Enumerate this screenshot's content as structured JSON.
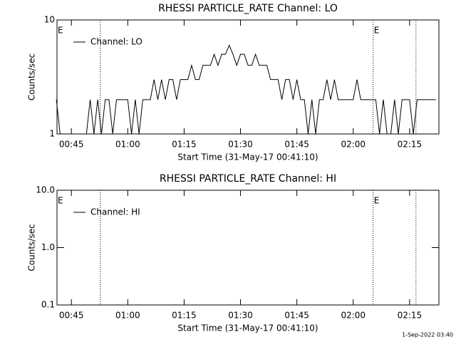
{
  "chart_data": [
    {
      "type": "line",
      "title": "RHESSI PARTICLE_RATE Channel: LO",
      "xlabel": "Start Time (31-May-17 00:41:10)",
      "ylabel": "Counts/sec",
      "log_y": true,
      "xlim": [
        41.17,
        142.8
      ],
      "ylim": [
        1,
        10
      ],
      "yticks": [
        1,
        10
      ],
      "xticks": [
        {
          "value": 45,
          "label": "00:45"
        },
        {
          "value": 60,
          "label": "01:00"
        },
        {
          "value": 75,
          "label": "01:15"
        },
        {
          "value": 90,
          "label": "01:30"
        },
        {
          "value": 105,
          "label": "01:45"
        },
        {
          "value": 120,
          "label": "02:00"
        },
        {
          "value": 135,
          "label": "02:15"
        }
      ],
      "vlines": [
        52.7,
        125.3,
        136.7
      ],
      "annotations": [
        {
          "text": "E",
          "x": 41.17
        },
        {
          "text": "E",
          "x": 125.3
        }
      ],
      "x": [
        41,
        42,
        43,
        44,
        45,
        46,
        47,
        48,
        49,
        50,
        51,
        52,
        53,
        54,
        55,
        56,
        57,
        58,
        59,
        60,
        61,
        62,
        63,
        64,
        65,
        66,
        67,
        68,
        69,
        70,
        71,
        72,
        73,
        74,
        75,
        76,
        77,
        78,
        79,
        80,
        81,
        82,
        83,
        84,
        85,
        86,
        87,
        88,
        89,
        90,
        91,
        92,
        93,
        94,
        95,
        96,
        97,
        98,
        99,
        100,
        101,
        102,
        103,
        104,
        105,
        106,
        107,
        108,
        109,
        110,
        111,
        112,
        113,
        114,
        115,
        116,
        117,
        118,
        119,
        120,
        121,
        122,
        123,
        124,
        125,
        126,
        127,
        128,
        129,
        130,
        131,
        132,
        133,
        134,
        135,
        136,
        137,
        138,
        139,
        140,
        141,
        142
      ],
      "series": [
        {
          "name": "Channel: LO",
          "color": "#000000",
          "values": [
            2,
            1,
            1,
            1,
            1,
            1,
            1,
            1,
            1,
            2,
            1,
            2,
            1,
            2,
            2,
            1,
            2,
            2,
            2,
            2,
            1,
            2,
            1,
            2,
            2,
            2,
            3,
            2,
            3,
            2,
            3,
            3,
            2,
            3,
            3,
            3,
            4,
            3,
            3,
            4,
            4,
            4,
            5,
            4,
            5,
            5,
            6,
            5,
            4,
            5,
            5,
            4,
            4,
            5,
            4,
            4,
            4,
            3,
            3,
            3,
            2,
            3,
            3,
            2,
            3,
            2,
            2,
            1,
            2,
            1,
            2,
            2,
            3,
            2,
            3,
            2,
            2,
            2,
            2,
            2,
            3,
            2,
            2,
            2,
            2,
            2,
            1,
            2,
            1,
            1,
            2,
            1,
            2,
            2,
            2,
            1,
            2,
            2,
            2,
            2,
            2,
            2
          ]
        }
      ]
    },
    {
      "type": "line",
      "title": "RHESSI PARTICLE_RATE Channel: HI",
      "xlabel": "Start Time (31-May-17 00:41:10)",
      "ylabel": "Counts/sec",
      "log_y": true,
      "xlim": [
        41.17,
        142.8
      ],
      "ylim": [
        0.1,
        10
      ],
      "yticks": [
        {
          "value": 0.1,
          "label": "0.1"
        },
        {
          "value": 1,
          "label": "1.0"
        },
        {
          "value": 10,
          "label": "10.0"
        }
      ],
      "xticks": [
        {
          "value": 45,
          "label": "00:45"
        },
        {
          "value": 60,
          "label": "01:00"
        },
        {
          "value": 75,
          "label": "01:15"
        },
        {
          "value": 90,
          "label": "01:30"
        },
        {
          "value": 105,
          "label": "01:45"
        },
        {
          "value": 120,
          "label": "02:00"
        },
        {
          "value": 135,
          "label": "02:15"
        }
      ],
      "vlines": [
        52.7,
        125.3,
        136.7
      ],
      "annotations": [
        {
          "text": "E",
          "x": 41.17
        },
        {
          "text": "E",
          "x": 125.3
        }
      ],
      "x": [],
      "series": [
        {
          "name": "Channel: HI",
          "color": "#000000",
          "values": []
        }
      ]
    }
  ],
  "footer": "1-Sep-2022 03:40"
}
